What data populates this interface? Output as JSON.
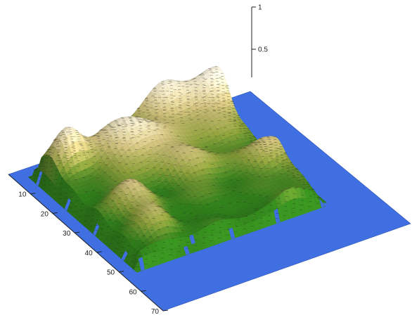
{
  "chart_data": {
    "type": "surface-3d",
    "title": "",
    "xlabel": "",
    "ylabel": "",
    "zlabel": "",
    "y_axis": {
      "ticks": [
        10,
        20,
        30,
        40,
        50,
        60,
        70
      ],
      "tick_labels": [
        "10",
        "20",
        "30",
        "40",
        "50",
        "60",
        "70"
      ],
      "range": [
        0,
        70
      ]
    },
    "z_axis": {
      "ticks": [
        0.5,
        1
      ],
      "tick_labels": [
        "0.5",
        "1"
      ],
      "range": [
        0,
        1
      ]
    },
    "colors": {
      "water": "#3f6fe0",
      "lowland": "#2f7a1a",
      "midland": "#8a9a3a",
      "highland": "#c8b878",
      "peak": "#f2ecd8",
      "contour": "#2b2b1e"
    },
    "grid": false,
    "legend": "none"
  }
}
